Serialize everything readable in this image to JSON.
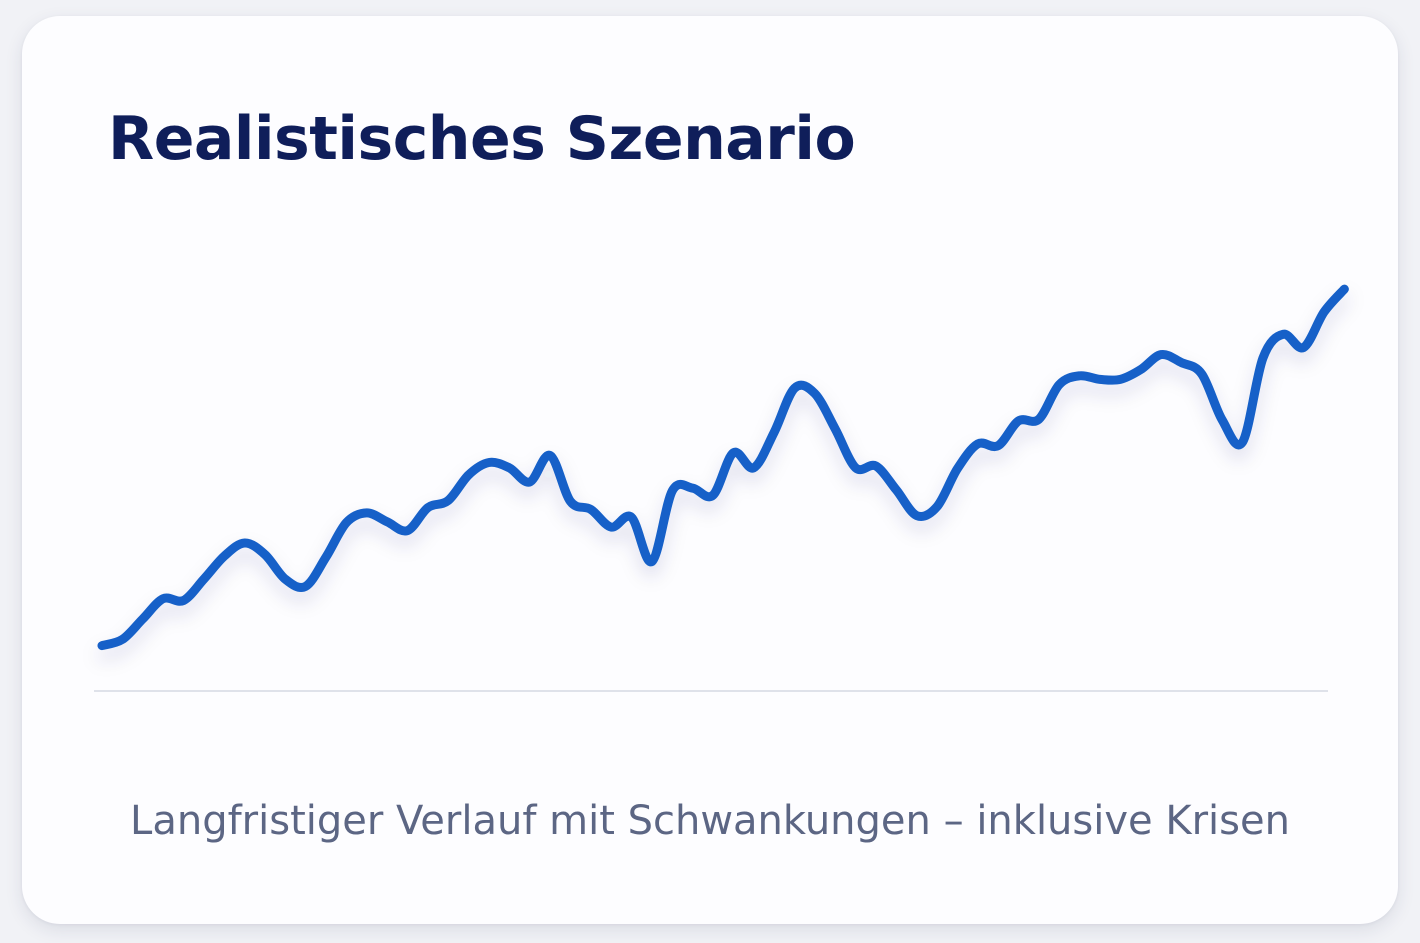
{
  "card": {
    "title": "Realistisches Szenario",
    "caption": "Langfristiger Verlauf mit Schwankungen – inklusive Krisen"
  },
  "colors": {
    "line": "#1560c8",
    "title": "#0f1e5a",
    "caption": "#5c6684",
    "baseline": "#dfe2ea"
  },
  "chart_data": {
    "type": "line",
    "title": "Realistisches Szenario",
    "xlabel": "",
    "ylabel": "",
    "grid": false,
    "legend": "none",
    "xlim": [
      0,
      60
    ],
    "ylim": [
      0,
      450
    ],
    "series": [
      {
        "values": [
          5,
          12,
          35,
          58,
          56,
          80,
          106,
          121,
          108,
          80,
          72,
          105,
          144,
          155,
          145,
          135,
          161,
          169,
          198,
          212,
          206,
          190,
          220,
          168,
          159,
          139,
          150,
          100,
          180,
          183,
          175,
          223,
          206,
          246,
          296,
          290,
          250,
          206,
          208,
          181,
          152,
          162,
          205,
          233,
          231,
          259,
          261,
          300,
          310,
          306,
          306,
          317,
          334,
          325,
          312,
          260,
          235,
          330,
          357,
          342,
          382,
          408
        ]
      }
    ]
  }
}
